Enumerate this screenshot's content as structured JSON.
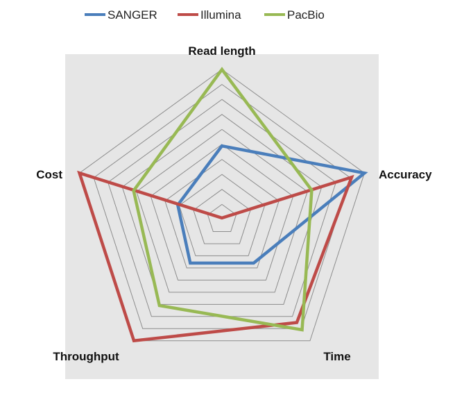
{
  "chart_data": {
    "type": "radar",
    "axes": [
      "Read length",
      "Accuracy",
      "Time",
      "Throughput",
      "Cost"
    ],
    "rlim": [
      0,
      10
    ],
    "grid": true,
    "legend_position": "top",
    "series": [
      {
        "name": "SANGER",
        "color": "#4a7ebb",
        "values": [
          4.9,
          10,
          3.6,
          3.6,
          3.1
        ]
      },
      {
        "name": "Illumina",
        "color": "#be4b48",
        "values": [
          0.1,
          9.1,
          8.5,
          10,
          10
        ]
      },
      {
        "name": "PacBio",
        "color": "#98b954",
        "values": [
          10,
          6.3,
          9.1,
          7.1,
          6.2
        ]
      }
    ],
    "plot_background": "#e6e6e6"
  }
}
